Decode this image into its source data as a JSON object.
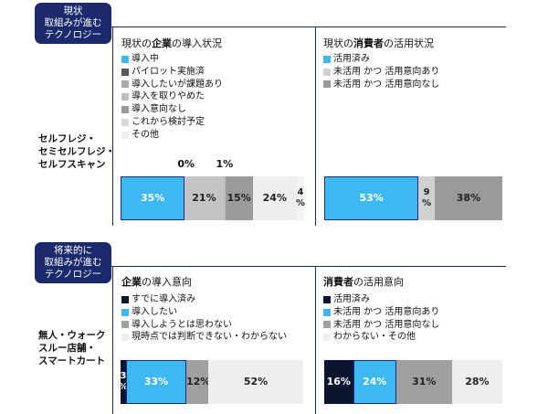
{
  "sections": [
    {
      "badge": [
        "現状",
        "取組みが進む",
        "テクノロジー"
      ],
      "row_label": [
        "セルフレジ・",
        "セミセルフレジ・",
        "セルフスキャン"
      ],
      "left": {
        "title_pre": "現状の",
        "title_bold": "企業",
        "title_post": "の導入状況",
        "legend": [
          {
            "label": "導入中",
            "color": "#3db8f0"
          },
          {
            "label": "パイロット実施済",
            "color": "#5a5a5a"
          },
          {
            "label": "導入したいが課題あり",
            "color": "#a9a9a9"
          },
          {
            "label": "導入を取りやめた",
            "color": "#bdbdbd"
          },
          {
            "label": "導入意向なし",
            "color": "#9a9a9a"
          },
          {
            "label": "これから検討予定",
            "color": "#d9d9d9"
          },
          {
            "label": "その他",
            "color": "#eeeeee"
          }
        ]
      },
      "right": {
        "title_pre": "現状の",
        "title_bold": "消費者",
        "title_post": "の活用状況",
        "legend": [
          {
            "label": "活用済み",
            "color": "#3db8f0"
          },
          {
            "label": "未活用 かつ 活用意向あり",
            "color": "#d0d0d0"
          },
          {
            "label": "未活用 かつ 活用意向なし",
            "color": "#9a9a9a"
          }
        ]
      }
    },
    {
      "badge": [
        "将来的に",
        "取組みが進む",
        "テクノロジー"
      ],
      "row_label": [
        "無人・ウォーク",
        "スルー店舗・",
        "スマートカート"
      ],
      "left": {
        "title_pre": "",
        "title_bold": "企業",
        "title_post": "の導入意向",
        "legend": [
          {
            "label": "すでに導入済み",
            "color": "#0b1530"
          },
          {
            "label": "導入したい",
            "color": "#3db8f0"
          },
          {
            "label": "導入しようとは思わない",
            "color": "#a0a0a0"
          },
          {
            "label": "現時点では判断できない・わからない",
            "color": "#eeeeee"
          }
        ]
      },
      "right": {
        "title_pre": "",
        "title_bold": "消費者",
        "title_post": "の活用意向",
        "legend": [
          {
            "label": "活用済み",
            "color": "#0b1530"
          },
          {
            "label": "未活用 かつ 活用意向あり",
            "color": "#3db8f0"
          },
          {
            "label": "未活用 かつ 活用意向なし",
            "color": "#a0a0a0"
          },
          {
            "label": "わからない・その他",
            "color": "#eeeeee"
          }
        ]
      }
    }
  ],
  "chart_data": [
    {
      "type": "bar",
      "title": "現状の企業の導入状況",
      "categories": [
        "導入中",
        "パイロット実施済",
        "導入したいが課題あり",
        "導入を取りやめた",
        "導入意向なし",
        "これから検討予定",
        "その他"
      ],
      "values": [
        35,
        0,
        21,
        1,
        15,
        24,
        4
      ],
      "labels": [
        "35%",
        "0%",
        "21%",
        "1%",
        "15%",
        "24%",
        "4%"
      ],
      "colors": [
        "#3db8f0",
        "#5a5a5a",
        "#c4c4c4",
        "#bdbdbd",
        "#9a9a9a",
        "#eeeeee",
        "#f4f4f4"
      ],
      "stacked": true
    },
    {
      "type": "bar",
      "title": "現状の消費者の活用状況",
      "categories": [
        "活用済み",
        "未活用 かつ 活用意向あり",
        "未活用 かつ 活用意向なし"
      ],
      "values": [
        53,
        9,
        38
      ],
      "labels": [
        "53%",
        "9%",
        "38%"
      ],
      "colors": [
        "#3db8f0",
        "#d0d0d0",
        "#9a9a9a"
      ],
      "stacked": true
    },
    {
      "type": "bar",
      "title": "企業の導入意向",
      "categories": [
        "すでに導入済み",
        "導入したい",
        "導入しようとは思わない",
        "現時点では判断できない・わからない"
      ],
      "values": [
        3,
        33,
        12,
        52
      ],
      "labels": [
        "3%",
        "33%",
        "12%",
        "52%"
      ],
      "colors": [
        "#0b1530",
        "#3db8f0",
        "#a0a0a0",
        "#eeeeee"
      ],
      "stacked": true
    },
    {
      "type": "bar",
      "title": "消費者の活用意向",
      "categories": [
        "活用済み",
        "未活用 かつ 活用意向あり",
        "未活用 かつ 活用意向なし",
        "わからない・その他"
      ],
      "values": [
        16,
        24,
        31,
        28
      ],
      "labels": [
        "16%",
        "24%",
        "31%",
        "28%"
      ],
      "colors": [
        "#0b1530",
        "#3db8f0",
        "#a0a0a0",
        "#eeeeee"
      ],
      "stacked": true
    }
  ]
}
